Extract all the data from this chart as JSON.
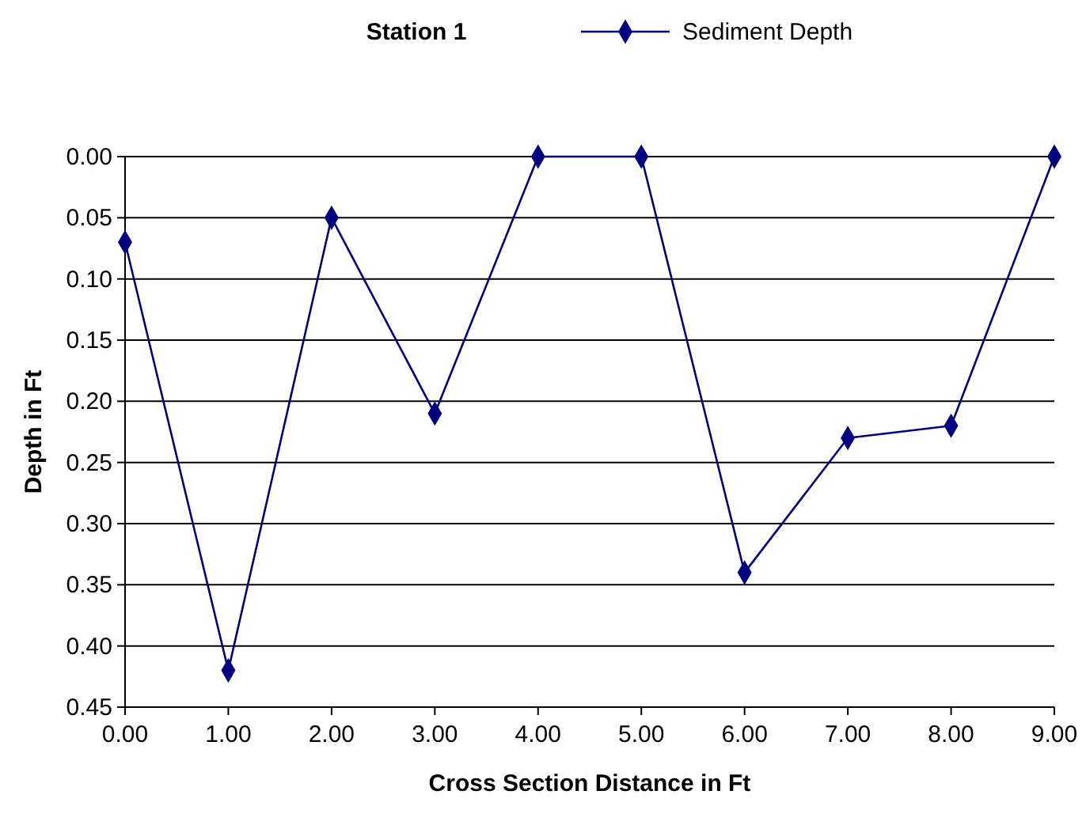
{
  "chart_data": {
    "type": "line",
    "title": "Station 1",
    "xlabel": "Cross Section Distance in Ft",
    "ylabel": "Depth in Ft",
    "x": [
      0,
      1,
      2,
      3,
      4,
      5,
      6,
      7,
      8,
      9
    ],
    "xlim": [
      0,
      9
    ],
    "xticks": [
      {
        "value": 0,
        "label": "0.00"
      },
      {
        "value": 1,
        "label": "1.00"
      },
      {
        "value": 2,
        "label": "2.00"
      },
      {
        "value": 3,
        "label": "3.00"
      },
      {
        "value": 4,
        "label": "4.00"
      },
      {
        "value": 5,
        "label": "5.00"
      },
      {
        "value": 6,
        "label": "6.00"
      },
      {
        "value": 7,
        "label": "7.00"
      },
      {
        "value": 8,
        "label": "8.00"
      },
      {
        "value": 9,
        "label": "9.00"
      }
    ],
    "ylim": [
      0.45,
      0
    ],
    "yticks": [
      {
        "value": 0,
        "label": "0.00"
      },
      {
        "value": 0.05,
        "label": "0.05"
      },
      {
        "value": 0.1,
        "label": "0.10"
      },
      {
        "value": 0.15,
        "label": "0.15"
      },
      {
        "value": 0.2,
        "label": "0.20"
      },
      {
        "value": 0.25,
        "label": "0.25"
      },
      {
        "value": 0.3,
        "label": "0.30"
      },
      {
        "value": 0.35,
        "label": "0.35"
      },
      {
        "value": 0.4,
        "label": "0.40"
      },
      {
        "value": 0.45,
        "label": "0.45"
      }
    ],
    "series": [
      {
        "name": "Sediment Depth",
        "color": "#000080",
        "values": [
          0.07,
          0.42,
          0.05,
          0.21,
          0,
          0,
          0.34,
          0.23,
          0.22,
          0
        ]
      }
    ],
    "grid": "y",
    "legend": "top",
    "marker": "diamond",
    "line_style": "solid"
  }
}
